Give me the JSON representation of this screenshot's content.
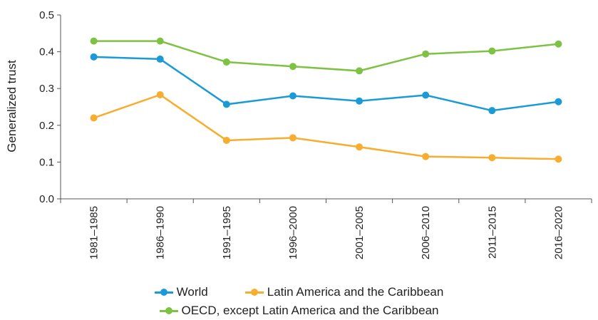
{
  "chart_data": {
    "type": "line",
    "title": "",
    "xlabel": "",
    "ylabel": "Generalized trust",
    "ylim": [
      0,
      0.5
    ],
    "yticks": [
      "0.0",
      "0.1",
      "0.2",
      "0.3",
      "0.4",
      "0.5"
    ],
    "grid": false,
    "legend_position": "bottom",
    "categories": [
      "1981–1985",
      "1986–1990",
      "1991–1995",
      "1996–2000",
      "2001–2005",
      "2006–2010",
      "2011–2015",
      "2016–2020"
    ],
    "series": [
      {
        "name": "World",
        "color": "#1a9ad6",
        "values": [
          0.386,
          0.38,
          0.257,
          0.28,
          0.266,
          0.282,
          0.24,
          0.264
        ]
      },
      {
        "name": "Latin America and the Caribbean",
        "color": "#f7ad2f",
        "values": [
          0.22,
          0.283,
          0.159,
          0.166,
          0.141,
          0.115,
          0.112,
          0.108
        ]
      },
      {
        "name": "OECD, except Latin America and the Caribbean",
        "color": "#7dc242",
        "values": [
          0.429,
          0.429,
          0.372,
          0.36,
          0.348,
          0.394,
          0.402,
          0.421
        ]
      }
    ]
  }
}
